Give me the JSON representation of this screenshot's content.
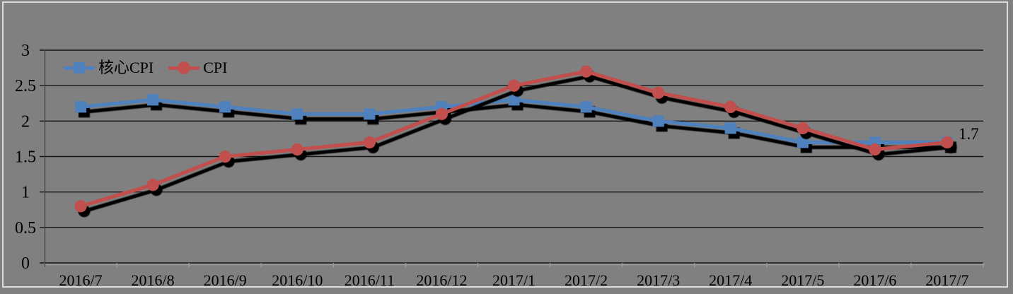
{
  "chart_data": {
    "type": "line",
    "title": "",
    "xlabel": "",
    "ylabel": "",
    "categories": [
      "2016/7",
      "2016/8",
      "2016/9",
      "2016/10",
      "2016/11",
      "2016/12",
      "2017/1",
      "2017/2",
      "2017/3",
      "2017/4",
      "2017/5",
      "2017/6",
      "2017/7"
    ],
    "series": [
      {
        "name": "核心CPI",
        "color": "#4F81BD",
        "marker": "square",
        "values": [
          2.2,
          2.3,
          2.2,
          2.1,
          2.1,
          2.2,
          2.3,
          2.2,
          2.0,
          1.9,
          1.7,
          1.7,
          1.7
        ]
      },
      {
        "name": "CPI",
        "color": "#C0504D",
        "marker": "circle",
        "values": [
          0.8,
          1.1,
          1.5,
          1.6,
          1.7,
          2.1,
          2.5,
          2.7,
          2.4,
          2.2,
          1.9,
          1.6,
          1.7
        ]
      }
    ],
    "ylim": [
      0,
      3
    ],
    "ytick_step": 0.5,
    "ytick_labels": [
      "0",
      "0.5",
      "1",
      "1.5",
      "2",
      "2.5",
      "3"
    ],
    "grid": true,
    "legend_position": "top-left",
    "end_label": {
      "series": "CPI",
      "category": "2017/7",
      "text": "1.7"
    }
  },
  "colors": {
    "background": "#808080",
    "frame": "#dcdcdc",
    "gridline": "#141414",
    "axis_light": "#9d9d9d",
    "axis_dark": "#3f3f3f",
    "shadow": "#000000",
    "text": "#000000"
  }
}
